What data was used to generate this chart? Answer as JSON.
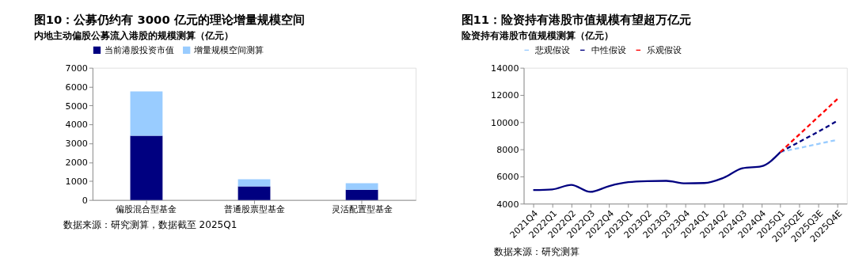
{
  "chart_data": [
    {
      "type": "bar",
      "title": "图10：公募仍约有 3000 亿元的理论增量规模空间",
      "subtitle": "内地主动偏股公募流入港股的规模测算（亿元）",
      "categories": [
        "偏股混合型基金",
        "普通股票型基金",
        "灵活配置型基金"
      ],
      "series": [
        {
          "name": "当前港股投资市值",
          "color": "#000080",
          "values": [
            3400,
            720,
            540
          ]
        },
        {
          "name": "增量规模空间测算",
          "color": "#99ccff",
          "values": [
            2350,
            380,
            350
          ]
        }
      ],
      "stacked": true,
      "ylim": [
        0,
        7000
      ],
      "yticks": [
        0,
        1000,
        2000,
        3000,
        4000,
        5000,
        6000,
        7000
      ],
      "grid": false,
      "legend": "top",
      "annotations": [
        "数据来源：研究测算，数据截至 2025Q1"
      ]
    },
    {
      "type": "line",
      "title": "图11：险资持有港股市值规模有望超万亿元",
      "subtitle": "险资持有港股市值规模测算（亿元）",
      "categories": [
        "2021Q4",
        "2022Q1",
        "2022Q2",
        "2022Q3",
        "2022Q4",
        "2023Q1",
        "2023Q2",
        "2023Q3",
        "2023Q4",
        "2024Q1",
        "2024Q2",
        "2024Q3",
        "2024Q4",
        "2025Q1",
        "2025Q2E",
        "2025Q3E",
        "2025Q4E"
      ],
      "series": [
        {
          "color": "#000080",
          "line_style": "solid",
          "values": [
            5000,
            5050,
            5380,
            4870,
            5300,
            5580,
            5660,
            5680,
            5500,
            5520,
            5900,
            6600,
            6750,
            7800,
            null,
            null,
            null
          ]
        },
        {
          "name": "悲观假设",
          "color": "#99ccff",
          "line_style": "dashed",
          "values": [
            null,
            null,
            null,
            null,
            null,
            null,
            null,
            null,
            null,
            null,
            null,
            null,
            null,
            7800,
            8100,
            8400,
            8700
          ]
        },
        {
          "name": "中性假设",
          "color": "#000080",
          "line_style": "dashed",
          "values": [
            null,
            null,
            null,
            null,
            null,
            null,
            null,
            null,
            null,
            null,
            null,
            null,
            null,
            7800,
            8550,
            9300,
            10100
          ]
        },
        {
          "name": "乐观假设",
          "color": "#ff0000",
          "line_style": "dashed",
          "values": [
            null,
            null,
            null,
            null,
            null,
            null,
            null,
            null,
            null,
            null,
            null,
            null,
            null,
            7800,
            9100,
            10400,
            11700
          ]
        }
      ],
      "ylim": [
        4000,
        14000
      ],
      "yticks": [
        4000,
        6000,
        8000,
        10000,
        12000,
        14000
      ],
      "grid": false,
      "legend": "top",
      "annotations": [
        "数据来源：研究测算"
      ]
    }
  ]
}
